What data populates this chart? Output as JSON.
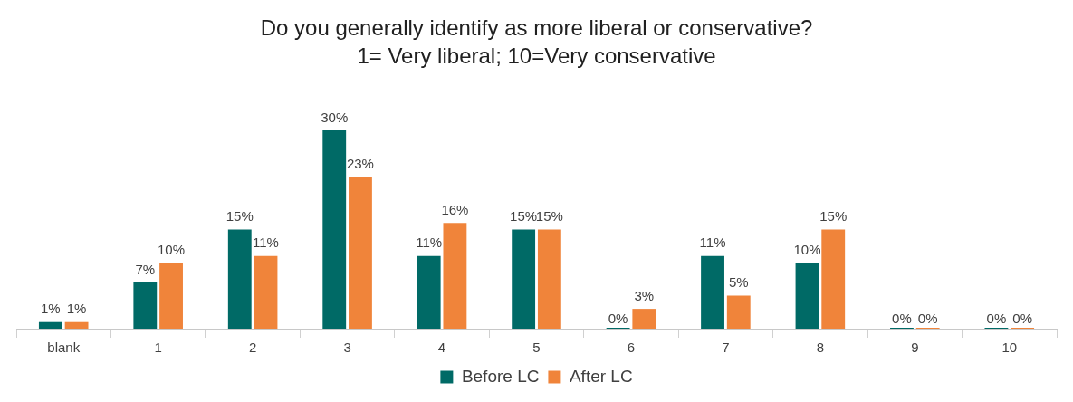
{
  "chart_data": {
    "type": "bar",
    "title": "Do you generally identify as more liberal or conservative?",
    "subtitle": "1= Very liberal; 10=Very conservative",
    "categories": [
      "blank",
      "1",
      "2",
      "3",
      "4",
      "5",
      "6",
      "7",
      "8",
      "9",
      "10"
    ],
    "series": [
      {
        "name": "Before LC",
        "color": "#006a66",
        "values": [
          1,
          7,
          15,
          30,
          11,
          15,
          0,
          11,
          10,
          0,
          0
        ],
        "value_labels": [
          "1%",
          "7%",
          "15%",
          "30%",
          "11%",
          "15%",
          "0%",
          "11%",
          "10%",
          "0%",
          "0%"
        ]
      },
      {
        "name": "After LC",
        "color": "#f0843a",
        "values": [
          1,
          10,
          11,
          23,
          16,
          15,
          3,
          5,
          15,
          0,
          0
        ],
        "value_labels": [
          "1%",
          "10%",
          "11%",
          "23%",
          "16%",
          "15%",
          "3%",
          "5%",
          "15%",
          "0%",
          "0%"
        ]
      }
    ],
    "legend": "bottom",
    "grid": false
  }
}
